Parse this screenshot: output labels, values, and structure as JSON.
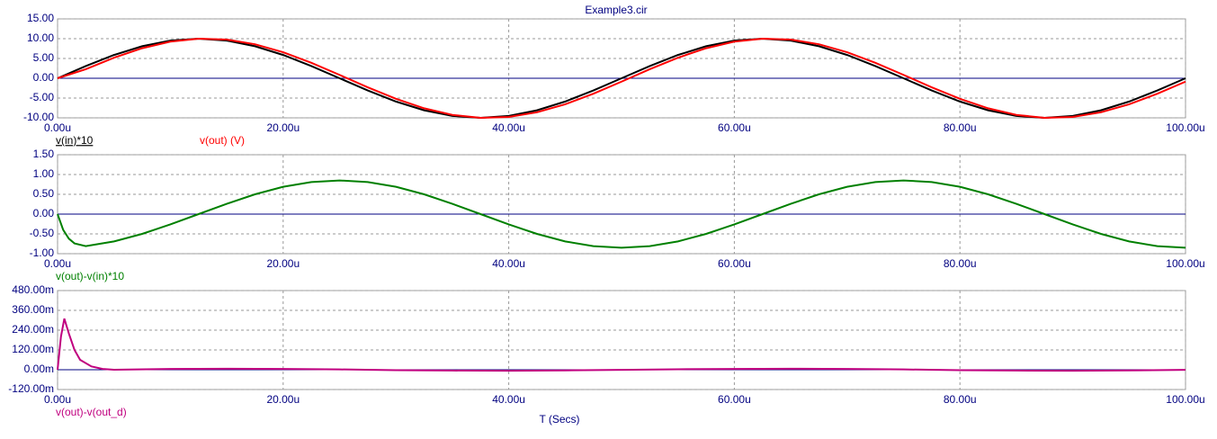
{
  "chart_data": [
    {
      "type": "line",
      "title": "Example3.cir",
      "x": [
        0,
        2.5,
        5,
        7.5,
        10,
        12.5,
        15,
        17.5,
        20,
        22.5,
        25,
        27.5,
        30,
        32.5,
        35,
        37.5,
        40,
        42.5,
        45,
        47.5,
        50,
        52.5,
        55,
        57.5,
        60,
        62.5,
        65,
        67.5,
        70,
        72.5,
        75,
        77.5,
        80,
        82.5,
        85,
        87.5,
        90,
        92.5,
        95,
        97.5,
        100
      ],
      "series": [
        {
          "name": "v(in)*10",
          "color": "#000000",
          "values": [
            0,
            3.09,
            5.88,
            8.09,
            9.51,
            10,
            9.51,
            8.09,
            5.88,
            3.09,
            0,
            -3.09,
            -5.88,
            -8.09,
            -9.51,
            -10,
            -9.51,
            -8.09,
            -5.88,
            -3.09,
            0,
            3.09,
            5.88,
            8.09,
            9.51,
            10,
            9.51,
            8.09,
            5.88,
            3.09,
            0,
            -3.09,
            -5.88,
            -8.09,
            -9.51,
            -10,
            -9.51,
            -8.09,
            -5.88,
            -3.09,
            0
          ]
        },
        {
          "name": "v(out) (V)",
          "color": "#ff0000",
          "values": [
            0,
            2.28,
            5.19,
            7.59,
            9.25,
            10,
            9.77,
            8.59,
            6.57,
            3.9,
            0.85,
            -2.28,
            -5.19,
            -7.59,
            -9.25,
            -10,
            -9.77,
            -8.59,
            -6.57,
            -3.9,
            -0.85,
            2.28,
            5.19,
            7.59,
            9.25,
            10,
            9.77,
            8.59,
            6.57,
            3.9,
            0.85,
            -2.28,
            -5.19,
            -7.59,
            -9.25,
            -10,
            -9.77,
            -8.59,
            -6.57,
            -3.9,
            -0.85
          ]
        }
      ],
      "xlim": [
        0,
        100
      ],
      "xticks": [
        {
          "value": 0,
          "label": "0.00u"
        },
        {
          "value": 20,
          "label": "20.00u"
        },
        {
          "value": 40,
          "label": "40.00u"
        },
        {
          "value": 60,
          "label": "60.00u"
        },
        {
          "value": 80,
          "label": "80.00u"
        },
        {
          "value": 100,
          "label": "100.00u"
        }
      ],
      "ylim": [
        -10,
        15
      ],
      "yticks": [
        {
          "value": -10,
          "label": "-10.00"
        },
        {
          "value": -5,
          "label": "-5.00"
        },
        {
          "value": 0,
          "label": "0.00"
        },
        {
          "value": 5,
          "label": "5.00"
        },
        {
          "value": 10,
          "label": "10.00"
        },
        {
          "value": 15,
          "label": "15.00"
        }
      ],
      "grid": true
    },
    {
      "type": "line",
      "x": [
        0,
        0.5,
        1,
        1.5,
        2.5,
        5,
        7.5,
        10,
        12.5,
        15,
        17.5,
        20,
        22.5,
        25,
        27.5,
        30,
        32.5,
        35,
        37.5,
        40,
        42.5,
        45,
        47.5,
        50,
        52.5,
        55,
        57.5,
        60,
        62.5,
        65,
        67.5,
        70,
        72.5,
        75,
        77.5,
        80,
        82.5,
        85,
        87.5,
        90,
        92.5,
        95,
        97.5,
        100
      ],
      "series": [
        {
          "name": "v(out)-v(in)*10",
          "color": "#008000",
          "values": [
            0,
            -0.4,
            -0.62,
            -0.74,
            -0.81,
            -0.69,
            -0.5,
            -0.26,
            0,
            0.26,
            0.5,
            0.69,
            0.81,
            0.85,
            0.81,
            0.69,
            0.5,
            0.26,
            0,
            -0.26,
            -0.5,
            -0.69,
            -0.81,
            -0.85,
            -0.81,
            -0.69,
            -0.5,
            -0.26,
            0,
            0.26,
            0.5,
            0.69,
            0.81,
            0.85,
            0.81,
            0.69,
            0.5,
            0.26,
            0,
            -0.26,
            -0.5,
            -0.69,
            -0.81,
            -0.85
          ]
        }
      ],
      "xlim": [
        0,
        100
      ],
      "xticks": [
        {
          "value": 0,
          "label": "0.00u"
        },
        {
          "value": 20,
          "label": "20.00u"
        },
        {
          "value": 40,
          "label": "40.00u"
        },
        {
          "value": 60,
          "label": "60.00u"
        },
        {
          "value": 80,
          "label": "80.00u"
        },
        {
          "value": 100,
          "label": "100.00u"
        }
      ],
      "ylim": [
        -1,
        1.5
      ],
      "yticks": [
        {
          "value": -1,
          "label": "-1.00"
        },
        {
          "value": -0.5,
          "label": "-0.50"
        },
        {
          "value": 0,
          "label": "0.00"
        },
        {
          "value": 0.5,
          "label": "0.50"
        },
        {
          "value": 1,
          "label": "1.00"
        },
        {
          "value": 1.5,
          "label": "1.50"
        }
      ],
      "grid": true
    },
    {
      "type": "line",
      "xlabel": "T (Secs)",
      "x": [
        0,
        0.3,
        0.6,
        1,
        1.5,
        2,
        3,
        4,
        5,
        10,
        15,
        20,
        25,
        30,
        35,
        40,
        45,
        50,
        55,
        60,
        65,
        70,
        75,
        80,
        85,
        90,
        95,
        100
      ],
      "series": [
        {
          "name": "v(out)-v(out_d)",
          "color": "#c0007f",
          "values": [
            0,
            0.2,
            0.31,
            0.22,
            0.12,
            0.06,
            0.02,
            0.005,
            0,
            0.005,
            0.006,
            0.005,
            0.002,
            -0.003,
            -0.005,
            -0.006,
            -0.004,
            -0.001,
            0.003,
            0.005,
            0.006,
            0.005,
            0.002,
            -0.003,
            -0.005,
            -0.006,
            -0.004,
            -0.001
          ]
        }
      ],
      "xlim": [
        0,
        100
      ],
      "xticks": [
        {
          "value": 0,
          "label": "0.00u"
        },
        {
          "value": 20,
          "label": "20.00u"
        },
        {
          "value": 40,
          "label": "40.00u"
        },
        {
          "value": 60,
          "label": "60.00u"
        },
        {
          "value": 80,
          "label": "80.00u"
        },
        {
          "value": 100,
          "label": "100.00u"
        }
      ],
      "ylim": [
        -0.12,
        0.48
      ],
      "yticks": [
        {
          "value": -0.12,
          "label": "-120.00m"
        },
        {
          "value": 0,
          "label": "0.00m"
        },
        {
          "value": 0.12,
          "label": "120.00m"
        },
        {
          "value": 0.24,
          "label": "240.00m"
        },
        {
          "value": 0.36,
          "label": "360.00m"
        },
        {
          "value": 0.48,
          "label": "480.00m"
        }
      ],
      "grid": true
    }
  ]
}
